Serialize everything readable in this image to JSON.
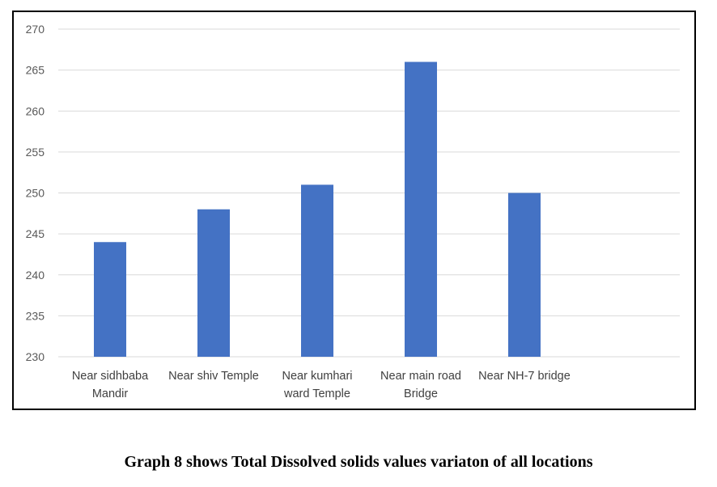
{
  "caption": "Graph 8 shows Total Dissolved solids values variaton of all locations",
  "chart_data": {
    "type": "bar",
    "categories": [
      [
        "Near sidhbaba",
        "Mandir"
      ],
      [
        "Near shiv Temple"
      ],
      [
        "Near kumhari",
        "ward Temple"
      ],
      [
        "Near main road",
        "Bridge"
      ],
      [
        "Near NH-7 bridge"
      ],
      [
        ""
      ]
    ],
    "values": [
      244,
      248,
      251,
      266,
      250,
      null
    ],
    "ylim": [
      230,
      270
    ],
    "yticks": [
      230,
      235,
      240,
      245,
      250,
      255,
      260,
      265,
      270
    ],
    "grid": true,
    "legend": "none",
    "bar_color": "#4472C4",
    "grid_color": "#D9D9D9",
    "title": "",
    "xlabel": "",
    "ylabel": ""
  }
}
